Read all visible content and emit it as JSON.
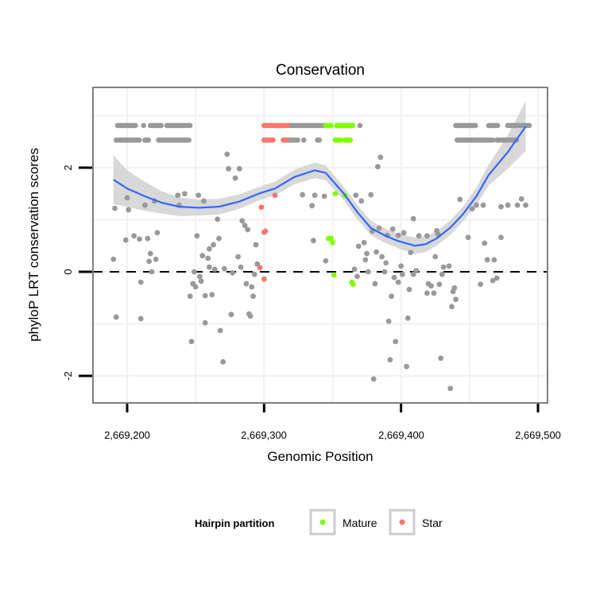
{
  "chart_data": {
    "type": "scatter",
    "title": "Conservation",
    "xlabel": "Genomic Position",
    "ylabel": "phyloP LRT conservation scores",
    "xlim": [
      2669175,
      2669507
    ],
    "ylim": [
      -2.52,
      3.54
    ],
    "x_ticks": [
      2669200,
      2669300,
      2669400,
      2669500
    ],
    "x_tick_labels": [
      "2,669,200",
      "2,669,300",
      "2,669,400",
      "2,669,500"
    ],
    "y_ticks": [
      -2,
      0,
      2
    ],
    "y_tick_labels": [
      "-2",
      "0",
      "2"
    ],
    "reference_line": {
      "y": 0,
      "style": "dashed"
    },
    "legend": {
      "title": "Hairpin partition",
      "placement": "bottom",
      "entries": [
        {
          "label": "Mature",
          "color": "#7FFF00"
        },
        {
          "label": "Star",
          "color": "#F8766D"
        }
      ]
    },
    "colors": {
      "other": "#999999",
      "Mature": "#7FFF00",
      "Star": "#F8766D",
      "smooth": "#3366FF",
      "band": "#D6D6D6"
    },
    "series": [
      {
        "name": "Other",
        "points": [
          [
            2669191,
            1.22
          ],
          [
            2669200,
            1.42
          ],
          [
            2669201,
            1.19
          ],
          [
            2669213,
            1.28
          ],
          [
            2669220,
            1.36
          ],
          [
            2669237,
            1.47
          ],
          [
            2669242,
            1.5
          ],
          [
            2669238,
            1.28
          ],
          [
            2669252,
            1.47
          ],
          [
            2669256,
            1.36
          ],
          [
            2669273,
            2.26
          ],
          [
            2669274,
            1.98
          ],
          [
            2669282,
            1.98
          ],
          [
            2669279,
            1.8
          ],
          [
            2669266,
            1.01
          ],
          [
            2669284,
            0.98
          ],
          [
            2669286,
            0.89
          ],
          [
            2669288,
            0.81
          ],
          [
            2669199,
            0.61
          ],
          [
            2669205,
            0.69
          ],
          [
            2669209,
            0.63
          ],
          [
            2669215,
            0.64
          ],
          [
            2669222,
            0.75
          ],
          [
            2669190,
            0.24
          ],
          [
            2669217,
            0.35
          ],
          [
            2669216,
            0.2
          ],
          [
            2669221,
            0.24
          ],
          [
            2669218,
            0
          ],
          [
            2669210,
            -0.2
          ],
          [
            2669192,
            -0.87
          ],
          [
            2669210,
            -0.9
          ],
          [
            2669251,
            0.69
          ],
          [
            2669267,
            0.64
          ],
          [
            2669263,
            0.52
          ],
          [
            2669260,
            0.44
          ],
          [
            2669255,
            0.31
          ],
          [
            2669259,
            0.26
          ],
          [
            2669260,
            0.09
          ],
          [
            2669264,
            0.05
          ],
          [
            2669271,
            0.06
          ],
          [
            2669277,
            -0.02
          ],
          [
            2669281,
            0.29
          ],
          [
            2669283,
            0.09
          ],
          [
            2669294,
            0.52
          ],
          [
            2669295,
            0.15
          ],
          [
            2669293,
            -0.05
          ],
          [
            2669249,
            0
          ],
          [
            2669253,
            -0.09
          ],
          [
            2669254,
            -0.18
          ],
          [
            2669248,
            -0.23
          ],
          [
            2669250,
            -0.29
          ],
          [
            2669246,
            -0.47
          ],
          [
            2669257,
            -0.46
          ],
          [
            2669262,
            -0.44
          ],
          [
            2669287,
            -0.23
          ],
          [
            2669291,
            -0.29
          ],
          [
            2669292,
            -0.47
          ],
          [
            2669276,
            -0.82
          ],
          [
            2669289,
            -0.81
          ],
          [
            2669290,
            -0.85
          ],
          [
            2669257,
            -0.98
          ],
          [
            2669268,
            -1.13
          ],
          [
            2669247,
            -1.34
          ],
          [
            2669270,
            -1.73
          ],
          [
            2669328,
            1.48
          ],
          [
            2669337,
            1.47
          ],
          [
            2669344,
            1.45
          ],
          [
            2669335,
            1.27
          ],
          [
            2669336,
            0.6
          ],
          [
            2669345,
            0.21
          ],
          [
            2669367,
            1.47
          ],
          [
            2669371,
            1.36
          ],
          [
            2669378,
            1.48
          ],
          [
            2669385,
            2.2
          ],
          [
            2669383,
            2.02
          ],
          [
            2669409,
            1.02
          ],
          [
            2669379,
            0.78
          ],
          [
            2669384,
            0.84
          ],
          [
            2669390,
            0.7
          ],
          [
            2669394,
            0.82
          ],
          [
            2669398,
            0.7
          ],
          [
            2669402,
            0.75
          ],
          [
            2669413,
            0.69
          ],
          [
            2669419,
            0.69
          ],
          [
            2669426,
            0.79
          ],
          [
            2669427,
            0.72
          ],
          [
            2669443,
            1.39
          ],
          [
            2669452,
            1.21
          ],
          [
            2669455,
            1.28
          ],
          [
            2669460,
            1.28
          ],
          [
            2669473,
            1.25
          ],
          [
            2669478,
            1.28
          ],
          [
            2669485,
            1.28
          ],
          [
            2669488,
            1.4
          ],
          [
            2669491,
            1.28
          ],
          [
            2669449,
            0.66
          ],
          [
            2669461,
            0.55
          ],
          [
            2669473,
            0.66
          ],
          [
            2669369,
            0.49
          ],
          [
            2669373,
            0.56
          ],
          [
            2669375,
            0.35
          ],
          [
            2669374,
            0.23
          ],
          [
            2669382,
            0.38
          ],
          [
            2669386,
            0.29
          ],
          [
            2669389,
            0.17
          ],
          [
            2669407,
            0.37
          ],
          [
            2669425,
            0.29
          ],
          [
            2669366,
            0.05
          ],
          [
            2669368,
            -0.09
          ],
          [
            2669376,
            0
          ],
          [
            2669388,
            0
          ],
          [
            2669400,
            0.11
          ],
          [
            2669401,
            -0.05
          ],
          [
            2669409,
            -0.05
          ],
          [
            2669411,
            0.02
          ],
          [
            2669395,
            -0.11
          ],
          [
            2669398,
            -0.2
          ],
          [
            2669381,
            -0.23
          ],
          [
            2669406,
            -0.34
          ],
          [
            2669420,
            -0.23
          ],
          [
            2669422,
            -0.27
          ],
          [
            2669428,
            -0.24
          ],
          [
            2669419,
            -0.41
          ],
          [
            2669424,
            -0.41
          ],
          [
            2669431,
            0.09
          ],
          [
            2669435,
            0.11
          ],
          [
            2669430,
            -0.05
          ],
          [
            2669439,
            -0.31
          ],
          [
            2669438,
            -0.38
          ],
          [
            2669440,
            -0.53
          ],
          [
            2669437,
            -0.67
          ],
          [
            2669458,
            -0.24
          ],
          [
            2669463,
            0.23
          ],
          [
            2669468,
            0.23
          ],
          [
            2669467,
            -0.17
          ],
          [
            2669470,
            -0.12
          ],
          [
            2669393,
            -0.47
          ],
          [
            2669391,
            -0.95
          ],
          [
            2669405,
            -0.89
          ],
          [
            2669396,
            -1.34
          ],
          [
            2669392,
            -1.69
          ],
          [
            2669404,
            -1.82
          ],
          [
            2669429,
            -1.66
          ],
          [
            2669380,
            -2.06
          ],
          [
            2669436,
            -2.24
          ]
        ]
      },
      {
        "name": "Star",
        "points": [
          [
            2669308,
            1.47
          ],
          [
            2669298,
            1.24
          ],
          [
            2669300,
            0.76
          ],
          [
            2669301,
            0.78
          ],
          [
            2669297,
            0.08
          ],
          [
            2669300,
            -0.14
          ]
        ]
      },
      {
        "name": "Mature",
        "points": [
          [
            2669347,
            0.64
          ],
          [
            2669352,
            1.5
          ],
          [
            2669359,
            1.47
          ],
          [
            2669349,
            0.64
          ],
          [
            2669350,
            0.56
          ],
          [
            2669351,
            -0.06
          ],
          [
            2669364,
            -0.2
          ],
          [
            2669365,
            -0.24
          ]
        ]
      }
    ],
    "dense_rows": [
      {
        "y": 2.81,
        "name": "Other",
        "ranges": [
          [
            2669193,
            2669207
          ],
          [
            2669212,
            2669212
          ],
          [
            2669217,
            2669226
          ],
          [
            2669229,
            2669246
          ],
          [
            2669319,
            2669345
          ],
          [
            2669370,
            2669370
          ],
          [
            2669440,
            2669455
          ],
          [
            2669464,
            2669471
          ],
          [
            2669478,
            2669494
          ]
        ]
      },
      {
        "y": 2.81,
        "name": "Star",
        "ranges": [
          [
            2669300,
            2669318
          ]
        ]
      },
      {
        "y": 2.81,
        "name": "Mature",
        "ranges": [
          [
            2669345,
            2669349
          ],
          [
            2669353,
            2669365
          ]
        ]
      },
      {
        "y": 2.53,
        "name": "Other",
        "ranges": [
          [
            2669192,
            2669210
          ],
          [
            2669213,
            2669216
          ],
          [
            2669223,
            2669246
          ],
          [
            2669318,
            2669325
          ],
          [
            2669329,
            2669329
          ],
          [
            2669339,
            2669341
          ],
          [
            2669441,
            2669467
          ],
          [
            2669470,
            2669485
          ]
        ]
      },
      {
        "y": 2.53,
        "name": "Star",
        "ranges": [
          [
            2669300,
            2669307
          ],
          [
            2669314,
            2669317
          ]
        ]
      },
      {
        "y": 2.53,
        "name": "Mature",
        "ranges": [
          [
            2669352,
            2669356
          ],
          [
            2669359,
            2669364
          ]
        ]
      }
    ],
    "smooth": {
      "method": "loess",
      "x": [
        2669190,
        2669200,
        2669213,
        2669225,
        2669238,
        2669252,
        2669267,
        2669282,
        2669297,
        2669308,
        2669322,
        2669337,
        2669345,
        2669358,
        2669368,
        2669378,
        2669388,
        2669397,
        2669410,
        2669418,
        2669426,
        2669436,
        2669445,
        2669455,
        2669464,
        2669478,
        2669491
      ],
      "y": [
        1.77,
        1.6,
        1.45,
        1.33,
        1.25,
        1.23,
        1.25,
        1.35,
        1.51,
        1.6,
        1.82,
        1.95,
        1.9,
        1.51,
        1.15,
        0.84,
        0.7,
        0.6,
        0.5,
        0.53,
        0.64,
        0.85,
        1.1,
        1.45,
        1.86,
        2.3,
        2.79
      ],
      "lo": [
        1.3,
        1.25,
        1.17,
        1.12,
        1.07,
        1.08,
        1.1,
        1.21,
        1.38,
        1.47,
        1.68,
        1.8,
        1.76,
        1.38,
        1.01,
        0.7,
        0.56,
        0.46,
        0.34,
        0.38,
        0.5,
        0.71,
        0.96,
        1.28,
        1.66,
        1.98,
        2.32
      ],
      "hi": [
        2.24,
        1.95,
        1.73,
        1.55,
        1.43,
        1.39,
        1.4,
        1.49,
        1.64,
        1.73,
        1.96,
        2.1,
        2.04,
        1.64,
        1.29,
        0.98,
        0.84,
        0.74,
        0.66,
        0.68,
        0.78,
        0.99,
        1.24,
        1.62,
        2.06,
        2.62,
        3.28
      ]
    }
  }
}
